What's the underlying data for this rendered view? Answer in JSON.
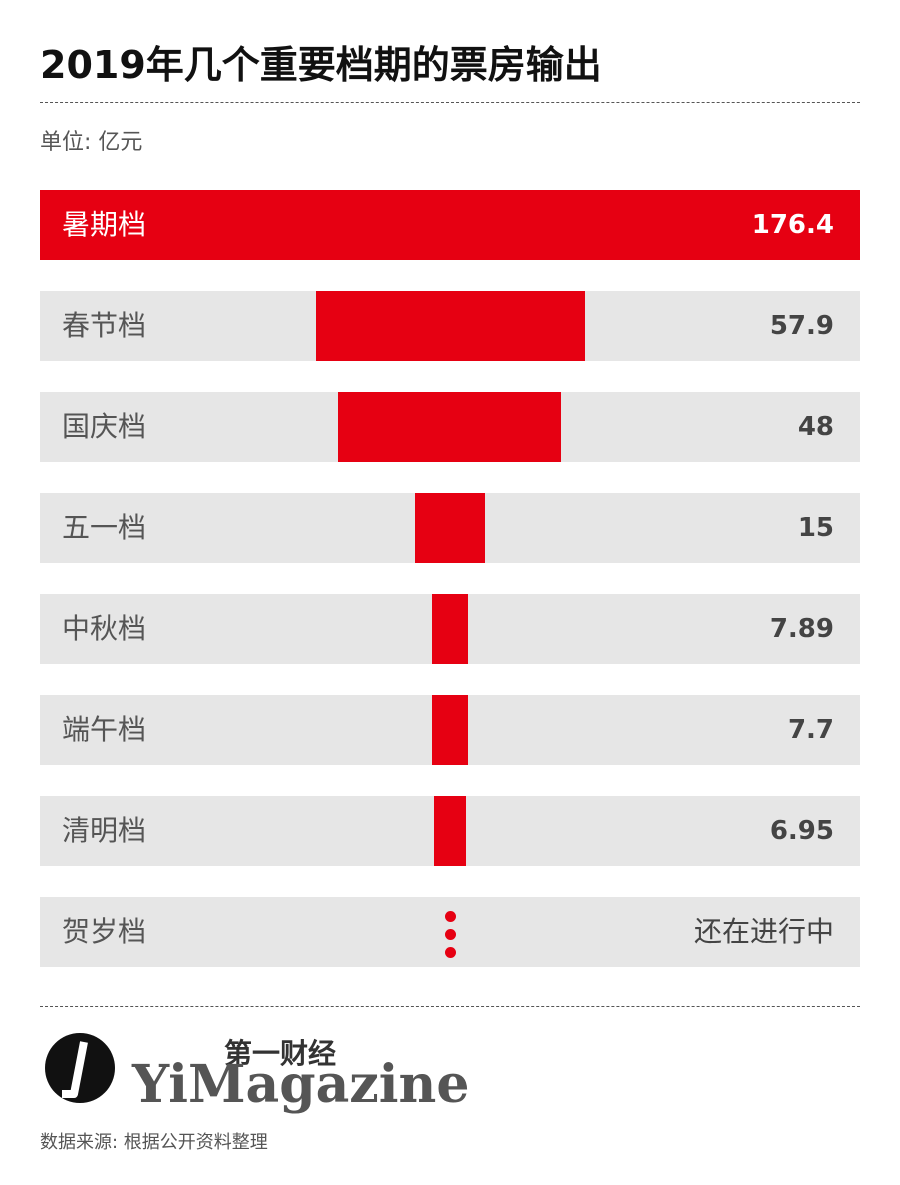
{
  "title": "2019年几个重要档期的票房输出",
  "unit": "单位: 亿元",
  "logo": {
    "cn": "第一财经",
    "en": "YiMagazine"
  },
  "source": "数据来源: 根据公开资料整理",
  "colors": {
    "accent": "#e60012",
    "row_bg": "#e6e6e6"
  },
  "chart_data": {
    "type": "bar",
    "title": "2019年几个重要档期的票房输出",
    "unit": "单位: 亿元",
    "categories": [
      "暑期档",
      "春节档",
      "国庆档",
      "五一档",
      "中秋档",
      "端午档",
      "清明档",
      "贺岁档"
    ],
    "values": [
      176.4,
      57.9,
      48,
      15,
      7.89,
      7.7,
      6.95,
      null
    ],
    "labels": [
      "176.4",
      "57.9",
      "48",
      "15",
      "7.89",
      "7.7",
      "6.95",
      "还在进行中"
    ]
  }
}
